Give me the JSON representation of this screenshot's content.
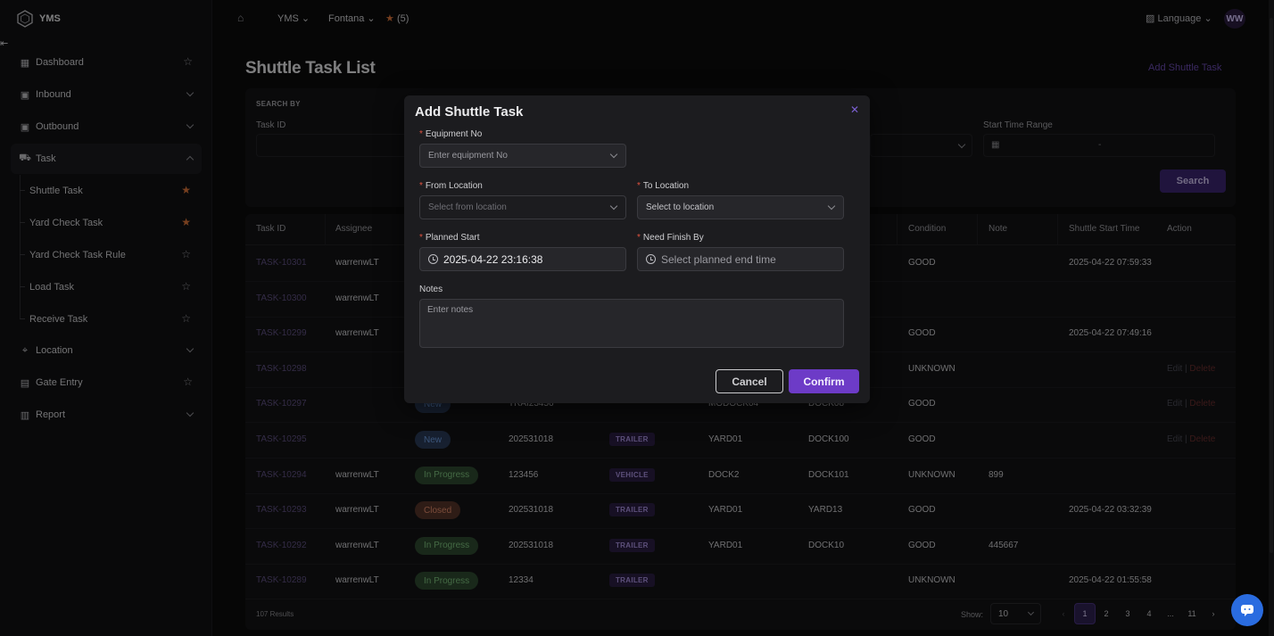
{
  "app": {
    "name": "YMS"
  },
  "sidebar": {
    "items": [
      {
        "label": "Dashboard"
      },
      {
        "label": "Inbound"
      },
      {
        "label": "Outbound"
      },
      {
        "label": "Task"
      },
      {
        "label": "Location"
      },
      {
        "label": "Gate Entry"
      },
      {
        "label": "Report"
      }
    ],
    "task_sub": [
      {
        "label": "Shuttle Task",
        "starred": true
      },
      {
        "label": "Yard Check Task",
        "starred": true
      },
      {
        "label": "Yard Check Task Rule",
        "starred": false
      },
      {
        "label": "Load Task",
        "starred": false
      },
      {
        "label": "Receive Task",
        "starred": false
      }
    ]
  },
  "topbar": {
    "app_switch": "YMS",
    "facility": "Fontana",
    "favorites": "(5)",
    "language": "Language",
    "avatar": "WW"
  },
  "page": {
    "title": "Shuttle Task List",
    "add_link": "Add Shuttle Task"
  },
  "search": {
    "heading": "SEARCH BY",
    "task_id_label": "Task ID",
    "start_range_label": "Start Time Range",
    "range_separator": "-",
    "button": "Search"
  },
  "table": {
    "headers": [
      "Task ID",
      "Assignee",
      "Condition",
      "Note",
      "Shuttle Start Time",
      "Action"
    ],
    "rows": [
      {
        "id": "TASK-10301",
        "assignee": "warrenwLT",
        "status": "",
        "equip": "",
        "type": "",
        "from": "",
        "to": "",
        "condition": "GOOD",
        "note": "",
        "start": "2025-04-22 07:59:33",
        "actions": false
      },
      {
        "id": "TASK-10300",
        "assignee": "warrenwLT",
        "status": "",
        "equip": "",
        "type": "",
        "from": "",
        "to": "",
        "condition": "",
        "note": "",
        "start": "",
        "actions": false
      },
      {
        "id": "TASK-10299",
        "assignee": "warrenwLT",
        "status": "",
        "equip": "",
        "type": "",
        "from": "",
        "to": "",
        "condition": "GOOD",
        "note": "",
        "start": "2025-04-22 07:49:16",
        "actions": false
      },
      {
        "id": "TASK-10298",
        "assignee": "",
        "status": "",
        "equip": "",
        "type": "",
        "from": "",
        "to": "",
        "condition": "UNKNOWN",
        "note": "",
        "start": "",
        "actions": true
      },
      {
        "id": "TASK-10297",
        "assignee": "",
        "status": "New",
        "equip": "TRAI23456",
        "type": "",
        "from": "MODOCK04",
        "to": "DOCK08",
        "condition": "GOOD",
        "note": "",
        "start": "",
        "actions": true
      },
      {
        "id": "TASK-10295",
        "assignee": "",
        "status": "New",
        "equip": "202531018",
        "type": "TRAILER",
        "from": "YARD01",
        "to": "DOCK100",
        "condition": "GOOD",
        "note": "",
        "start": "",
        "actions": true
      },
      {
        "id": "TASK-10294",
        "assignee": "warrenwLT",
        "status": "In Progress",
        "equip": "123456",
        "type": "VEHICLE",
        "from": "DOCK2",
        "to": "DOCK101",
        "condition": "UNKNOWN",
        "note": "899",
        "start": "",
        "actions": false
      },
      {
        "id": "TASK-10293",
        "assignee": "warrenwLT",
        "status": "Closed",
        "equip": "202531018",
        "type": "TRAILER",
        "from": "YARD01",
        "to": "YARD13",
        "condition": "GOOD",
        "note": "",
        "start": "2025-04-22 03:32:39",
        "actions": false
      },
      {
        "id": "TASK-10292",
        "assignee": "warrenwLT",
        "status": "In Progress",
        "equip": "202531018",
        "type": "TRAILER",
        "from": "YARD01",
        "to": "DOCK10",
        "condition": "GOOD",
        "note": "445667",
        "start": "",
        "actions": false
      },
      {
        "id": "TASK-10289",
        "assignee": "warrenwLT",
        "status": "In Progress",
        "equip": "12334",
        "type": "TRAILER",
        "from": "",
        "to": "",
        "condition": "UNKNOWN",
        "note": "",
        "start": "2025-04-22 01:55:58",
        "actions": false
      }
    ],
    "edit_label": "Edit",
    "delete_label": "Delete",
    "action_sep": "|",
    "results": "107 Results",
    "show_label": "Show:",
    "page_size": "10",
    "pages": [
      "1",
      "2",
      "3",
      "4",
      "...",
      "11"
    ],
    "current_page": "1"
  },
  "modal": {
    "title": "Add Shuttle Task",
    "equipment_label": "Equipment No",
    "equipment_placeholder": "Enter equipment No",
    "from_label": "From Location",
    "from_placeholder": "Select from location",
    "to_label": "To Location",
    "to_placeholder": "Select to location",
    "planned_label": "Planned Start",
    "planned_value": "2025-04-22 23:16:38",
    "finish_label": "Need Finish By",
    "finish_placeholder": "Select planned end time",
    "notes_label": "Notes",
    "notes_placeholder": "Enter notes",
    "cancel": "Cancel",
    "confirm": "Confirm"
  },
  "colors": {
    "accent": "#6d3bc7",
    "danger": "#e0523f",
    "star": "#d9743a"
  }
}
